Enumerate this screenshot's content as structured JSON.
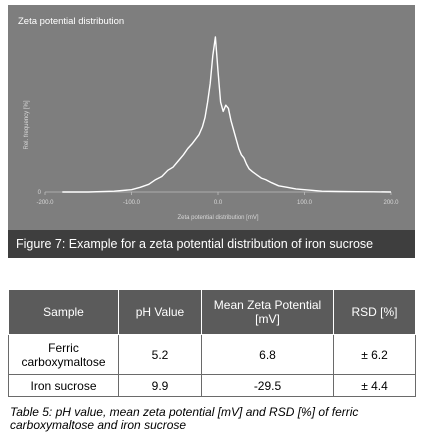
{
  "chart_data": {
    "type": "line",
    "title": "Zeta potential distribution",
    "xlabel": "Zeta potential distribution [mV]",
    "ylabel": "Rel. frequency [%]",
    "xlim": [
      -200,
      200
    ],
    "ylim": [
      0,
      100
    ],
    "xticks": [
      "-200.0",
      "-100.0",
      "0.0",
      "100.0",
      "200.0"
    ],
    "yticks": [
      "0"
    ],
    "grid": false,
    "series": [
      {
        "x": [
          -180,
          -150,
          -120,
          -100,
          -90,
          -80,
          -72,
          -65,
          -58,
          -52,
          -46,
          -40,
          -35,
          -30,
          -26,
          -22,
          -18,
          -15,
          -12,
          -9,
          -6,
          -3,
          0,
          3,
          6,
          9,
          12,
          15,
          18,
          21,
          24,
          27,
          30,
          33,
          36,
          40,
          45,
          50,
          55,
          62,
          70,
          80,
          90,
          100,
          110,
          120,
          140,
          160,
          180,
          200
        ],
        "y": [
          0,
          0,
          0.5,
          1.5,
          3,
          5,
          8,
          10,
          14,
          16,
          20,
          24,
          28,
          31,
          34,
          37,
          42,
          48,
          58,
          70,
          88,
          100,
          78,
          58,
          52,
          56,
          54,
          46,
          40,
          34,
          28,
          24,
          22,
          18,
          15,
          13,
          11,
          9,
          8,
          6,
          4,
          3,
          2,
          1.5,
          1,
          0.5,
          0.3,
          0.2,
          0.1,
          0
        ]
      }
    ]
  },
  "figure_caption": "Figure 7: Example for a zeta potential distribution of iron sucrose",
  "table": {
    "headers": [
      "Sample",
      "pH Value",
      "Mean Zeta Potential [mV]",
      "RSD [%]"
    ],
    "rows": [
      [
        "Ferric carboxymaltose",
        "5.2",
        "6.8",
        "± 6.2"
      ],
      [
        "Iron sucrose",
        "9.9",
        "-29.5",
        "± 4.4"
      ]
    ]
  },
  "table_caption": "Table 5: pH value, mean zeta potential [mV] and RSD [%] of ferric carboxymaltose and iron sucrose"
}
